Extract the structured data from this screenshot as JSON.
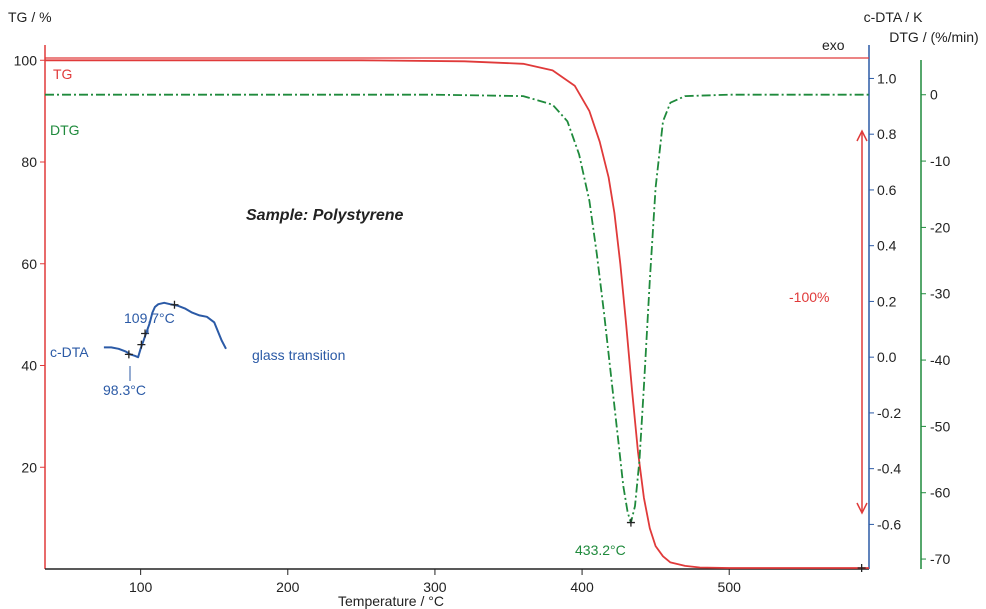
{
  "colors": {
    "tg": "#e03a3a",
    "dtg": "#1f8a3c",
    "cdta": "#2b5aa6",
    "black": "#222222"
  },
  "chart_data": {
    "type": "line",
    "title": "",
    "subtitle": "Sample: Polystyrene",
    "xlabel": "Temperature / °C",
    "xlim": [
      35,
      595
    ],
    "xticks": [
      100,
      200,
      300,
      400,
      500
    ],
    "axes": {
      "tg": {
        "label": "TG / %",
        "ylim": [
          0,
          103
        ],
        "ticks": [
          20,
          40,
          60,
          80,
          100
        ]
      },
      "cdta": {
        "label": "c-DTA / K",
        "ylim": [
          -0.76,
          1.12
        ],
        "ticks": [
          1.0,
          0.8,
          0.6,
          0.4,
          0.2,
          0.0,
          -0.2,
          -0.4,
          -0.6
        ]
      },
      "dtg": {
        "label": "DTG / (%/min)",
        "ylim": [
          -71.5,
          7.5
        ],
        "ticks": [
          0,
          -10,
          -20,
          -30,
          -40,
          -50,
          -60,
          -70
        ]
      }
    },
    "series": [
      {
        "name": "TG",
        "axis": "tg",
        "style": "solid",
        "x": [
          35,
          150,
          250,
          320,
          360,
          380,
          395,
          405,
          412,
          418,
          422,
          426,
          430,
          434,
          438,
          442,
          446,
          450,
          455,
          460,
          470,
          480,
          500,
          595
        ],
        "y": [
          100,
          100,
          100,
          99.8,
          99.3,
          98,
          95,
          90,
          84,
          77,
          70,
          60,
          48,
          35,
          23,
          14,
          8,
          4.5,
          2.5,
          1.3,
          0.6,
          0.3,
          0.2,
          0.2
        ]
      },
      {
        "name": "DTG",
        "axis": "dtg",
        "style": "dashdot",
        "x": [
          35,
          300,
          360,
          380,
          390,
          398,
          405,
          410,
          415,
          420,
          425,
          428,
          431,
          433.2,
          436,
          439,
          442,
          446,
          450,
          455,
          460,
          470,
          500,
          595
        ],
        "y": [
          0,
          0,
          -0.2,
          -1.5,
          -4,
          -9,
          -16,
          -24,
          -33,
          -43,
          -53,
          -59,
          -63,
          -64.5,
          -62,
          -55,
          -44,
          -28,
          -14,
          -4,
          -1.2,
          -0.2,
          0,
          0
        ]
      },
      {
        "name": "c-DTA",
        "axis": "cdta",
        "style": "solid",
        "x": [
          75,
          80,
          85,
          90,
          93,
          96,
          98.3,
          100,
          102,
          104,
          106,
          108,
          109.7,
          112,
          116,
          120,
          125,
          130,
          135,
          140,
          145,
          150,
          155,
          158
        ],
        "y": [
          0.035,
          0.035,
          0.03,
          0.02,
          0.01,
          0.005,
          0.0,
          0.03,
          0.06,
          0.09,
          0.12,
          0.16,
          0.18,
          0.19,
          0.195,
          0.19,
          0.185,
          0.175,
          0.16,
          0.15,
          0.145,
          0.125,
          0.06,
          0.03
        ]
      }
    ],
    "markers": [
      {
        "series": "c-DTA",
        "x": 92,
        "y": 0.01
      },
      {
        "series": "c-DTA",
        "x": 100.5,
        "y": 0.045
      },
      {
        "series": "c-DTA",
        "x": 103,
        "y": 0.085
      },
      {
        "series": "c-DTA",
        "x": 123,
        "y": 0.188
      },
      {
        "series": "DTG",
        "x": 433.2,
        "y": -64.5
      },
      {
        "series": "TG",
        "x": 590,
        "y": 0.2
      }
    ],
    "annotations": {
      "series_tg": "TG",
      "series_dtg": "DTG",
      "series_cdta": "c-DTA",
      "sample": "Sample: Polystyrene",
      "peak_onset": "98.3°C",
      "peak_mid": "109.7°C",
      "glass_transition": "glass transition",
      "dtg_peak": "433.2°C",
      "mass_change": "-100%",
      "exo": "exo"
    }
  }
}
